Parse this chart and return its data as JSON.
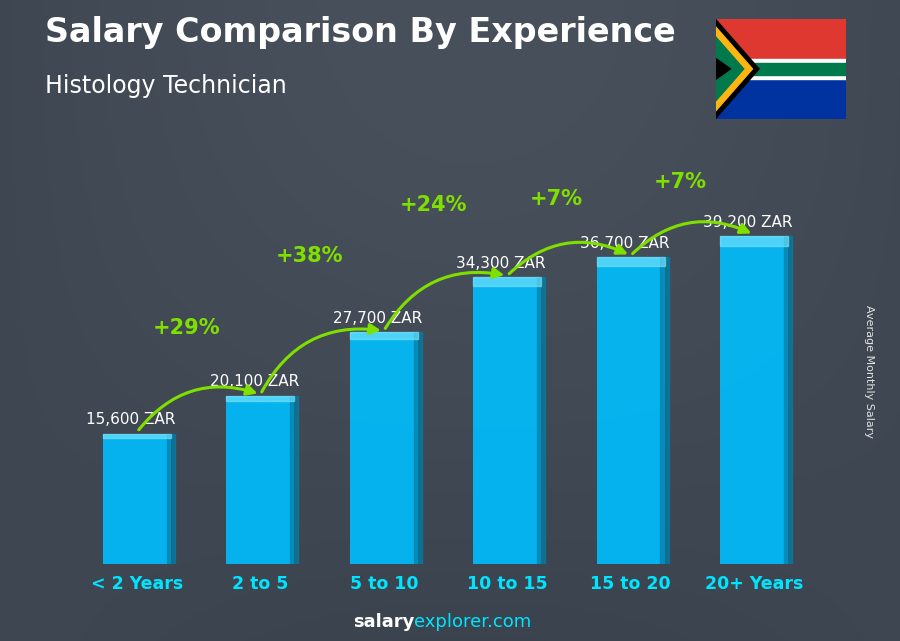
{
  "title": "Salary Comparison By Experience",
  "subtitle": "Histology Technician",
  "categories": [
    "< 2 Years",
    "2 to 5",
    "5 to 10",
    "10 to 15",
    "15 to 20",
    "20+ Years"
  ],
  "values": [
    15600,
    20100,
    27700,
    34300,
    36700,
    39200
  ],
  "value_labels": [
    "15,600 ZAR",
    "20,100 ZAR",
    "27,700 ZAR",
    "34,300 ZAR",
    "36,700 ZAR",
    "39,200 ZAR"
  ],
  "pct_labels": [
    "+29%",
    "+38%",
    "+24%",
    "+7%",
    "+7%"
  ],
  "bar_color_main": "#00BFFF",
  "bar_color_face": "#29C8F0",
  "pct_color": "#7FE000",
  "bg_color": "#5a6a7a",
  "title_color": "#FFFFFF",
  "subtitle_color": "#FFFFFF",
  "axis_label_color": "#00E5FF",
  "value_label_color": "#FFFFFF",
  "side_label": "Average Monthly Salary",
  "footer_salary": "salary",
  "footer_explorer": "explorer.com",
  "footer_color_white": "#FFFFFF",
  "footer_color_cyan": "#00E5FF",
  "ylim_max": 46000,
  "bar_width": 0.55
}
